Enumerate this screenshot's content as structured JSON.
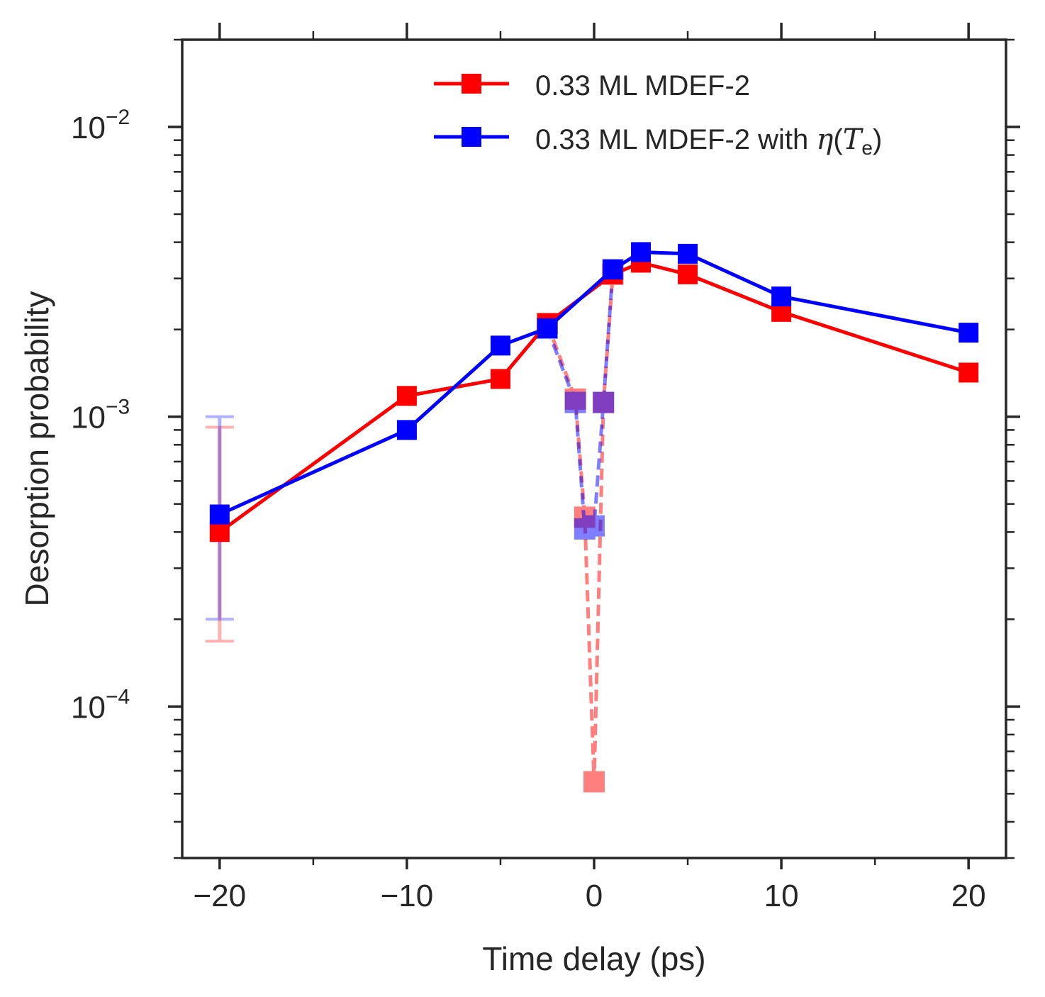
{
  "chart_data": {
    "type": "line",
    "xlabel": "Time delay (ps)",
    "ylabel": "Desorption probability",
    "xlim": [
      -22,
      22
    ],
    "ylim": [
      3e-05,
      0.02
    ],
    "yscale": "log",
    "x_ticks": [
      -20,
      -10,
      0,
      10,
      20
    ],
    "x_tick_labels": [
      "−20",
      "−10",
      "0",
      "10",
      "20"
    ],
    "y_ticks": [
      0.0001,
      0.001,
      0.01
    ],
    "y_tick_labels": [
      {
        "base": "10",
        "exp": "−4"
      },
      {
        "base": "10",
        "exp": "−3"
      },
      {
        "base": "10",
        "exp": "−2"
      }
    ],
    "legend_position": "top-right",
    "series": [
      {
        "name": "0.33 ML MDEF-2",
        "color": "#ff0000",
        "style": "solid",
        "marker": "square",
        "x": [
          -20,
          -10,
          -5,
          -2.5,
          1,
          2.5,
          5,
          10,
          20
        ],
        "y": [
          0.0004,
          0.00118,
          0.00135,
          0.0021,
          0.0031,
          0.0034,
          0.0031,
          0.0023,
          0.00142
        ],
        "error_bar": {
          "x": -20,
          "low": 0.000168,
          "high": 0.00092,
          "color": "#ff0000"
        }
      },
      {
        "name": "0.33 ML MDEF-2 with η(Tₑ)",
        "color": "#0000ff",
        "style": "solid",
        "marker": "square",
        "x": [
          -20,
          -10,
          -5,
          -2.5,
          1,
          2.5,
          5,
          10,
          20
        ],
        "y": [
          0.00046,
          0.0009,
          0.00176,
          0.00202,
          0.00322,
          0.0037,
          0.00365,
          0.0026,
          0.00195
        ],
        "error_bar": {
          "x": -20,
          "low": 0.0002,
          "high": 0.001,
          "color": "#0000ff"
        }
      },
      {
        "color": "#ff0000",
        "style": "dashed",
        "marker": "square",
        "alpha": 0.5,
        "x": [
          -2.5,
          -1,
          -0.5,
          0,
          0.5,
          1
        ],
        "y": [
          0.0021,
          0.00115,
          0.00045,
          5.5e-05,
          0.00112,
          0.0031
        ]
      },
      {
        "color": "#0000ff",
        "style": "dashed",
        "marker": "square",
        "alpha": 0.5,
        "x": [
          -2.5,
          -1,
          -0.5,
          0,
          0.5,
          1
        ],
        "y": [
          0.00202,
          0.00112,
          0.00041,
          0.00042,
          0.00112,
          0.00322
        ]
      }
    ],
    "legend": {
      "entries": [
        {
          "label": "0.33 ML MDEF-2",
          "color": "#ff0000"
        },
        {
          "label_prefix": "0.33 ML MDEF-2 with ",
          "label_eta": "η",
          "label_T": "T",
          "label_sub": "e",
          "color": "#0000ff"
        }
      ]
    }
  }
}
